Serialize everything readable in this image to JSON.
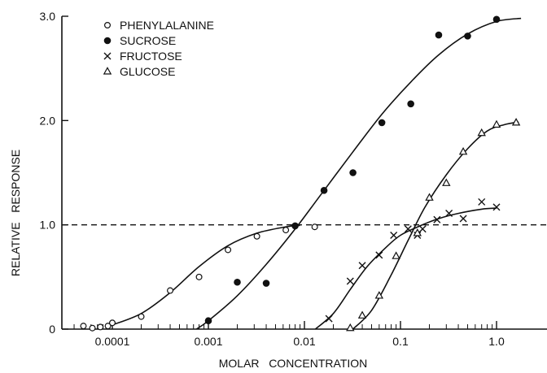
{
  "chart_data": {
    "type": "scatter",
    "xscale": "log",
    "xlabel": "MOLAR   CONCENTRATION",
    "ylabel": "RELATIVE   RESPONSE",
    "xlim": [
      4e-05,
      1.8
    ],
    "ylim": [
      0,
      30
    ],
    "x_ticks": [
      {
        "value": 0.0001,
        "label": "0.0001"
      },
      {
        "value": 0.001,
        "label": "0.001"
      },
      {
        "value": 0.01,
        "label": "0.01"
      },
      {
        "value": 0.1,
        "label": "0.1"
      },
      {
        "value": 1,
        "label": "1.0"
      }
    ],
    "y_ticks": [
      {
        "value": 0,
        "label": "0"
      },
      {
        "value": 10,
        "label": "1.0"
      },
      {
        "value": 20,
        "label": "2.0"
      },
      {
        "value": 30,
        "label": "3.0"
      }
    ],
    "reference_line": {
      "y": 10,
      "style": "dashed"
    },
    "grid": false,
    "legend_position": "top-left",
    "series": [
      {
        "name": "PHENYLALANINE",
        "marker": "open-circle",
        "points": [
          [
            5e-05,
            0.3
          ],
          [
            6.2e-05,
            0.1
          ],
          [
            7.5e-05,
            0.2
          ],
          [
            9e-05,
            0.3
          ],
          [
            0.0001,
            0.6
          ],
          [
            0.0002,
            1.2
          ],
          [
            0.0004,
            3.7
          ],
          [
            0.0008,
            5.0
          ],
          [
            0.0016,
            7.6
          ],
          [
            0.0032,
            8.9
          ],
          [
            0.0064,
            9.5
          ],
          [
            0.0128,
            9.8
          ]
        ],
        "curve": [
          [
            0.0001,
            0.4
          ],
          [
            0.0002,
            1.5
          ],
          [
            0.0004,
            3.5
          ],
          [
            0.0008,
            6.0
          ],
          [
            0.0016,
            8.0
          ],
          [
            0.0032,
            9.2
          ],
          [
            0.0064,
            9.8
          ],
          [
            0.009,
            9.95
          ]
        ]
      },
      {
        "name": "SUCROSE",
        "marker": "filled-circle",
        "points": [
          [
            0.001,
            0.8
          ],
          [
            0.002,
            4.5
          ],
          [
            0.004,
            4.4
          ],
          [
            0.008,
            9.9
          ],
          [
            0.016,
            13.3
          ],
          [
            0.032,
            15.0
          ],
          [
            0.064,
            19.8
          ],
          [
            0.128,
            21.6
          ],
          [
            0.25,
            28.2
          ],
          [
            0.5,
            28.1
          ],
          [
            1.0,
            29.7
          ]
        ],
        "curve": [
          [
            0.00075,
            0
          ],
          [
            0.001,
            0.8
          ],
          [
            0.002,
            3.2
          ],
          [
            0.004,
            6.2
          ],
          [
            0.008,
            9.6
          ],
          [
            0.016,
            13.3
          ],
          [
            0.032,
            17.0
          ],
          [
            0.064,
            20.6
          ],
          [
            0.128,
            23.7
          ],
          [
            0.25,
            26.3
          ],
          [
            0.5,
            28.3
          ],
          [
            1.0,
            29.5
          ],
          [
            1.8,
            29.8
          ]
        ]
      },
      {
        "name": "FRUCTOSE",
        "marker": "x",
        "points": [
          [
            0.018,
            1.0
          ],
          [
            0.03,
            4.6
          ],
          [
            0.04,
            6.1
          ],
          [
            0.06,
            7.1
          ],
          [
            0.085,
            9.0
          ],
          [
            0.12,
            9.6
          ],
          [
            0.15,
            9.0
          ],
          [
            0.17,
            9.6
          ],
          [
            0.24,
            10.5
          ],
          [
            0.32,
            11.1
          ],
          [
            0.45,
            10.6
          ],
          [
            0.7,
            12.2
          ],
          [
            1.0,
            11.7
          ]
        ],
        "curve": [
          [
            0.013,
            0
          ],
          [
            0.02,
            1.5
          ],
          [
            0.03,
            3.8
          ],
          [
            0.045,
            6.0
          ],
          [
            0.07,
            7.8
          ],
          [
            0.1,
            9.0
          ],
          [
            0.16,
            9.9
          ],
          [
            0.25,
            10.6
          ],
          [
            0.4,
            11.1
          ],
          [
            0.7,
            11.5
          ],
          [
            1.0,
            11.6
          ]
        ]
      },
      {
        "name": "GLUCOSE",
        "marker": "open-triangle",
        "points": [
          [
            0.03,
            0.1
          ],
          [
            0.04,
            1.3
          ],
          [
            0.06,
            3.2
          ],
          [
            0.09,
            7.0
          ],
          [
            0.15,
            9.2
          ],
          [
            0.2,
            12.6
          ],
          [
            0.3,
            14.0
          ],
          [
            0.45,
            17.0
          ],
          [
            0.7,
            18.8
          ],
          [
            1.0,
            19.6
          ],
          [
            1.6,
            19.8
          ]
        ],
        "curve": [
          [
            0.032,
            0
          ],
          [
            0.05,
            1.8
          ],
          [
            0.08,
            5.2
          ],
          [
            0.12,
            8.5
          ],
          [
            0.18,
            11.7
          ],
          [
            0.3,
            14.8
          ],
          [
            0.5,
            17.3
          ],
          [
            0.8,
            19.0
          ],
          [
            1.2,
            19.6
          ],
          [
            1.7,
            19.85
          ]
        ]
      }
    ]
  }
}
